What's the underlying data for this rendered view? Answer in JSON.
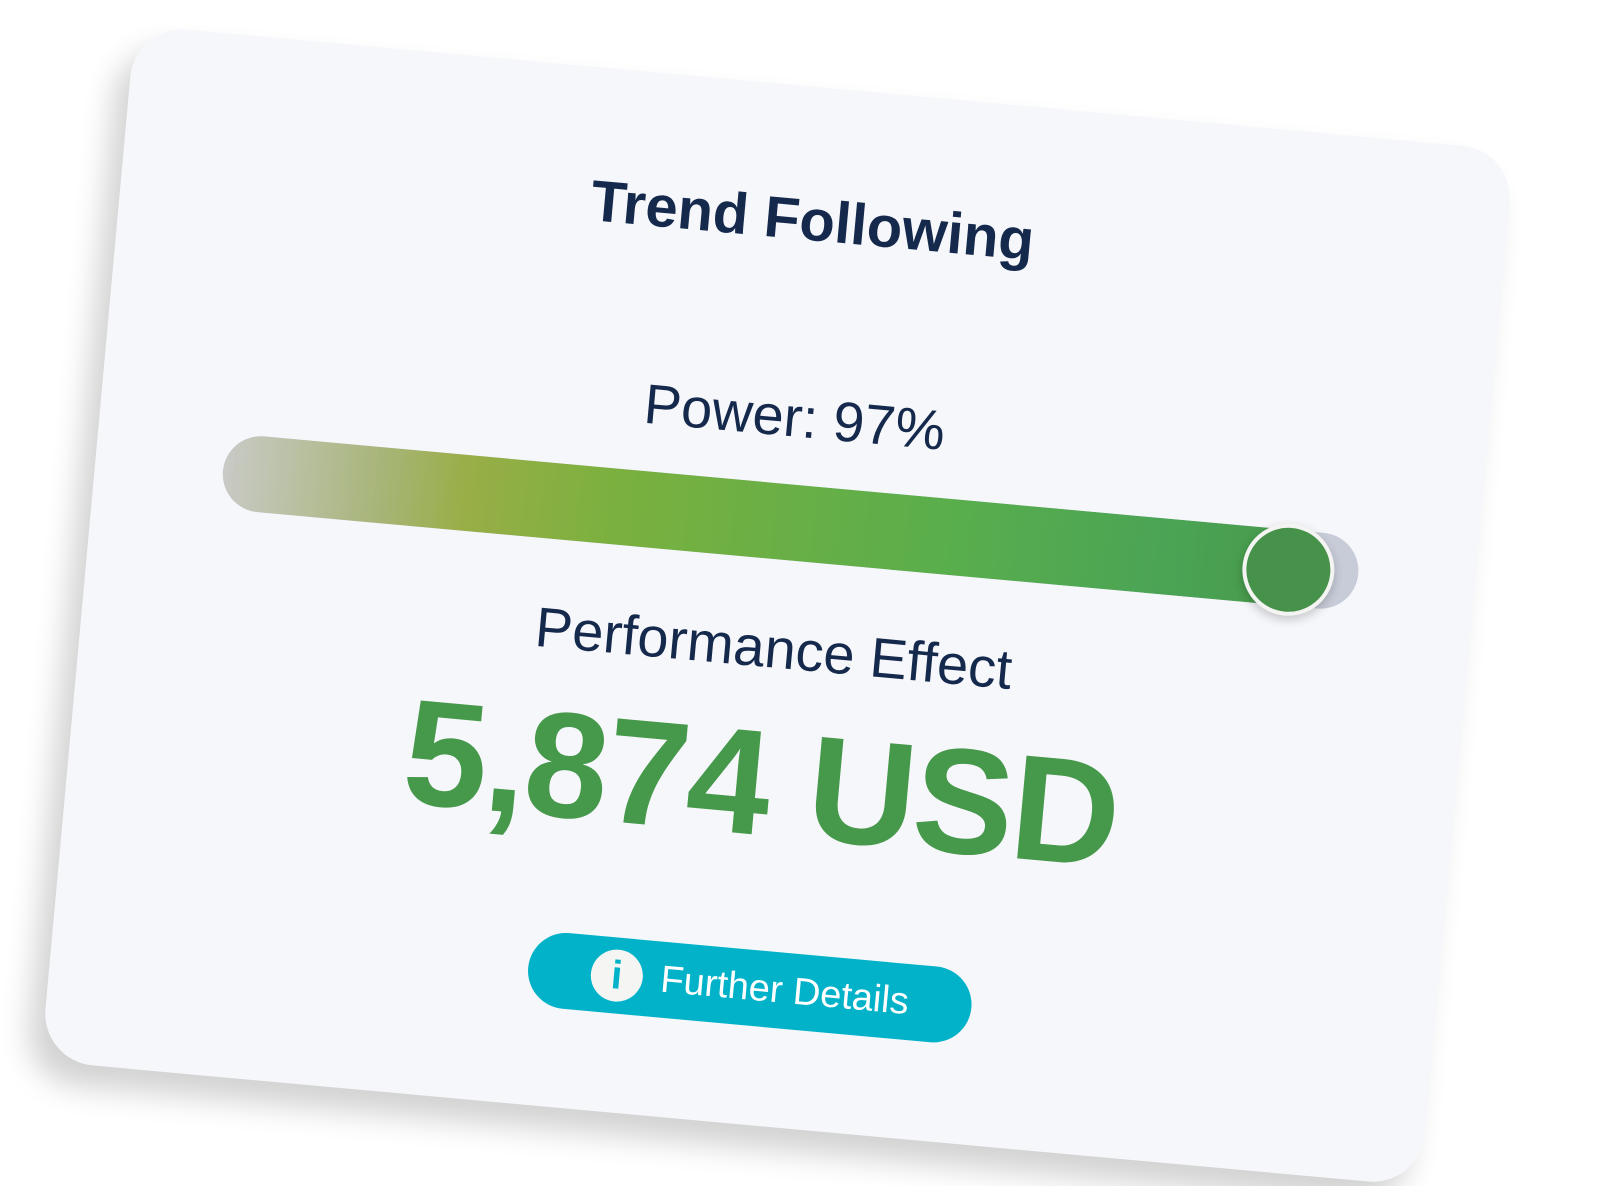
{
  "card": {
    "title": "Trend Following",
    "power_label": "Power: 97%",
    "power_percent": 97,
    "performance_label": "Performance Effect",
    "performance_value": "5,874 USD",
    "button_label": "Further Details",
    "button_icon": "info-icon"
  },
  "colors": {
    "accent": "#02b2c9",
    "value_green": "#46994b",
    "text": "#14294b"
  }
}
